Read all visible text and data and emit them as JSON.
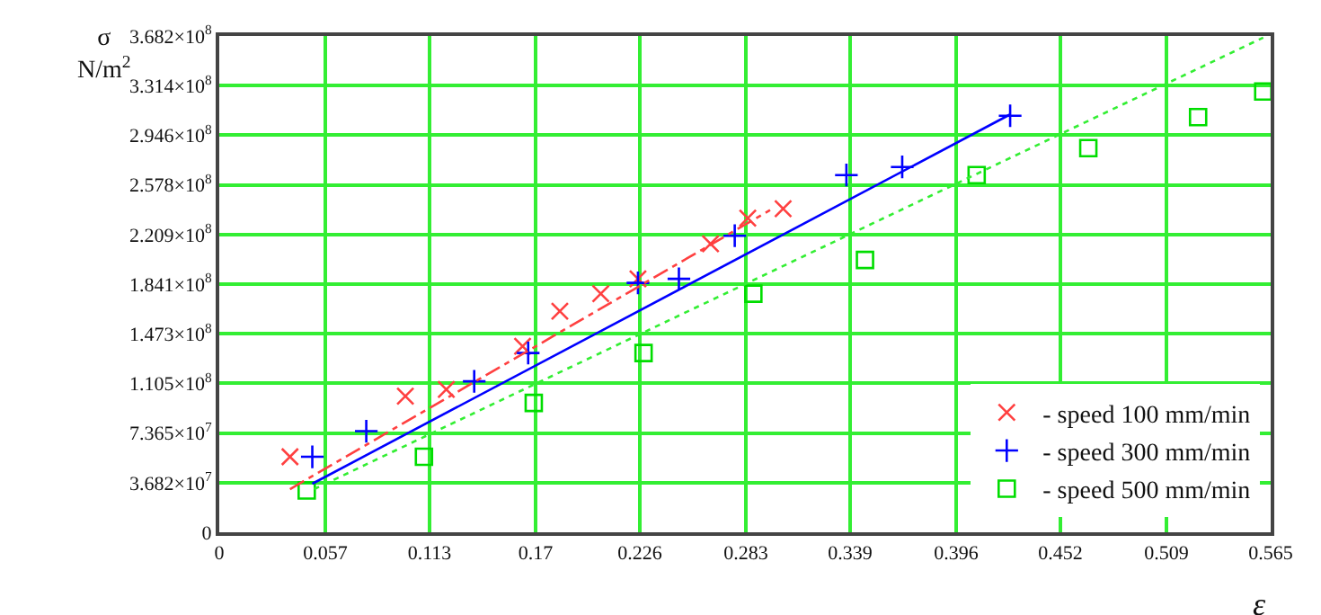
{
  "chart_data": {
    "type": "scatter",
    "xlabel": "ε",
    "ylabel": "σ\nN/m$^{2}$",
    "xlim": [
      0,
      0.565
    ],
    "ylim": [
      0,
      368200000
    ],
    "xticks": [
      0,
      0.057,
      0.113,
      0.17,
      0.226,
      0.283,
      0.339,
      0.396,
      0.452,
      0.509,
      0.565
    ],
    "yticks": [
      0,
      {
        "value": 36820000,
        "label": "3.682×10$^{7}$"
      },
      {
        "value": 73650000,
        "label": "7.365×10$^{7}$"
      },
      {
        "value": 110500000,
        "label": "1.105×10$^{8}$"
      },
      {
        "value": 147300000,
        "label": "1.473×10$^{8}$"
      },
      {
        "value": 184100000,
        "label": "1.841×10$^{8}$"
      },
      {
        "value": 220900000,
        "label": "2.209×10$^{8}$"
      },
      {
        "value": 257800000,
        "label": "2.578×10$^{8}$"
      },
      {
        "value": 294600000,
        "label": "2.946×10$^{8}$"
      },
      {
        "value": 331400000,
        "label": "3.314×10$^{8}$"
      },
      {
        "value": 368200000,
        "label": "3.682×10$^{8}$"
      }
    ],
    "grid": true,
    "legend": "bottom right",
    "series": [
      {
        "name": "- speed 100 mm/min",
        "color": "#ff4040",
        "marker": "x",
        "x": [
          0.038,
          0.1,
          0.122,
          0.163,
          0.183,
          0.205,
          0.225,
          0.264,
          0.284,
          0.303
        ],
        "values": [
          56000000,
          101000000,
          106000000,
          138000000,
          164000000,
          177000000,
          188000000,
          214000000,
          233000000,
          240000000
        ]
      },
      {
        "name": "- speed 300 mm/min",
        "color": "#0000ff",
        "marker": "cross",
        "x": [
          0.05,
          0.079,
          0.137,
          0.166,
          0.225,
          0.247,
          0.277,
          0.337,
          0.367,
          0.425
        ],
        "values": [
          56000000,
          75000000,
          112000000,
          133000000,
          185000000,
          188000000,
          220000000,
          265000000,
          271000000,
          309000000
        ]
      },
      {
        "name": "- speed 500 mm/min",
        "color": "#00dd00",
        "marker": "square",
        "x": [
          0.047,
          0.11,
          0.169,
          0.228,
          0.287,
          0.347,
          0.407,
          0.467,
          0.526,
          0.561
        ],
        "values": [
          31000000,
          56000000,
          96000000,
          133000000,
          177000000,
          202000000,
          265000000,
          285000000,
          308000000,
          327000000
        ]
      },
      {
        "type": "line",
        "color": "#ff4040",
        "marker": "none",
        "line_style": "dashed",
        "x": [
          0.038,
          0.296
        ],
        "values": [
          32000000,
          239000000
        ]
      },
      {
        "type": "line",
        "color": "#0000ff",
        "marker": "none",
        "line_style": "solid",
        "x": [
          0.05,
          0.425
        ],
        "values": [
          36000000,
          310000000
        ]
      },
      {
        "type": "line",
        "color": "#33ee33",
        "marker": "none",
        "line_style": "dotted",
        "x": [
          0.051,
          0.561
        ],
        "values": [
          32000000,
          367000000
        ]
      }
    ]
  }
}
